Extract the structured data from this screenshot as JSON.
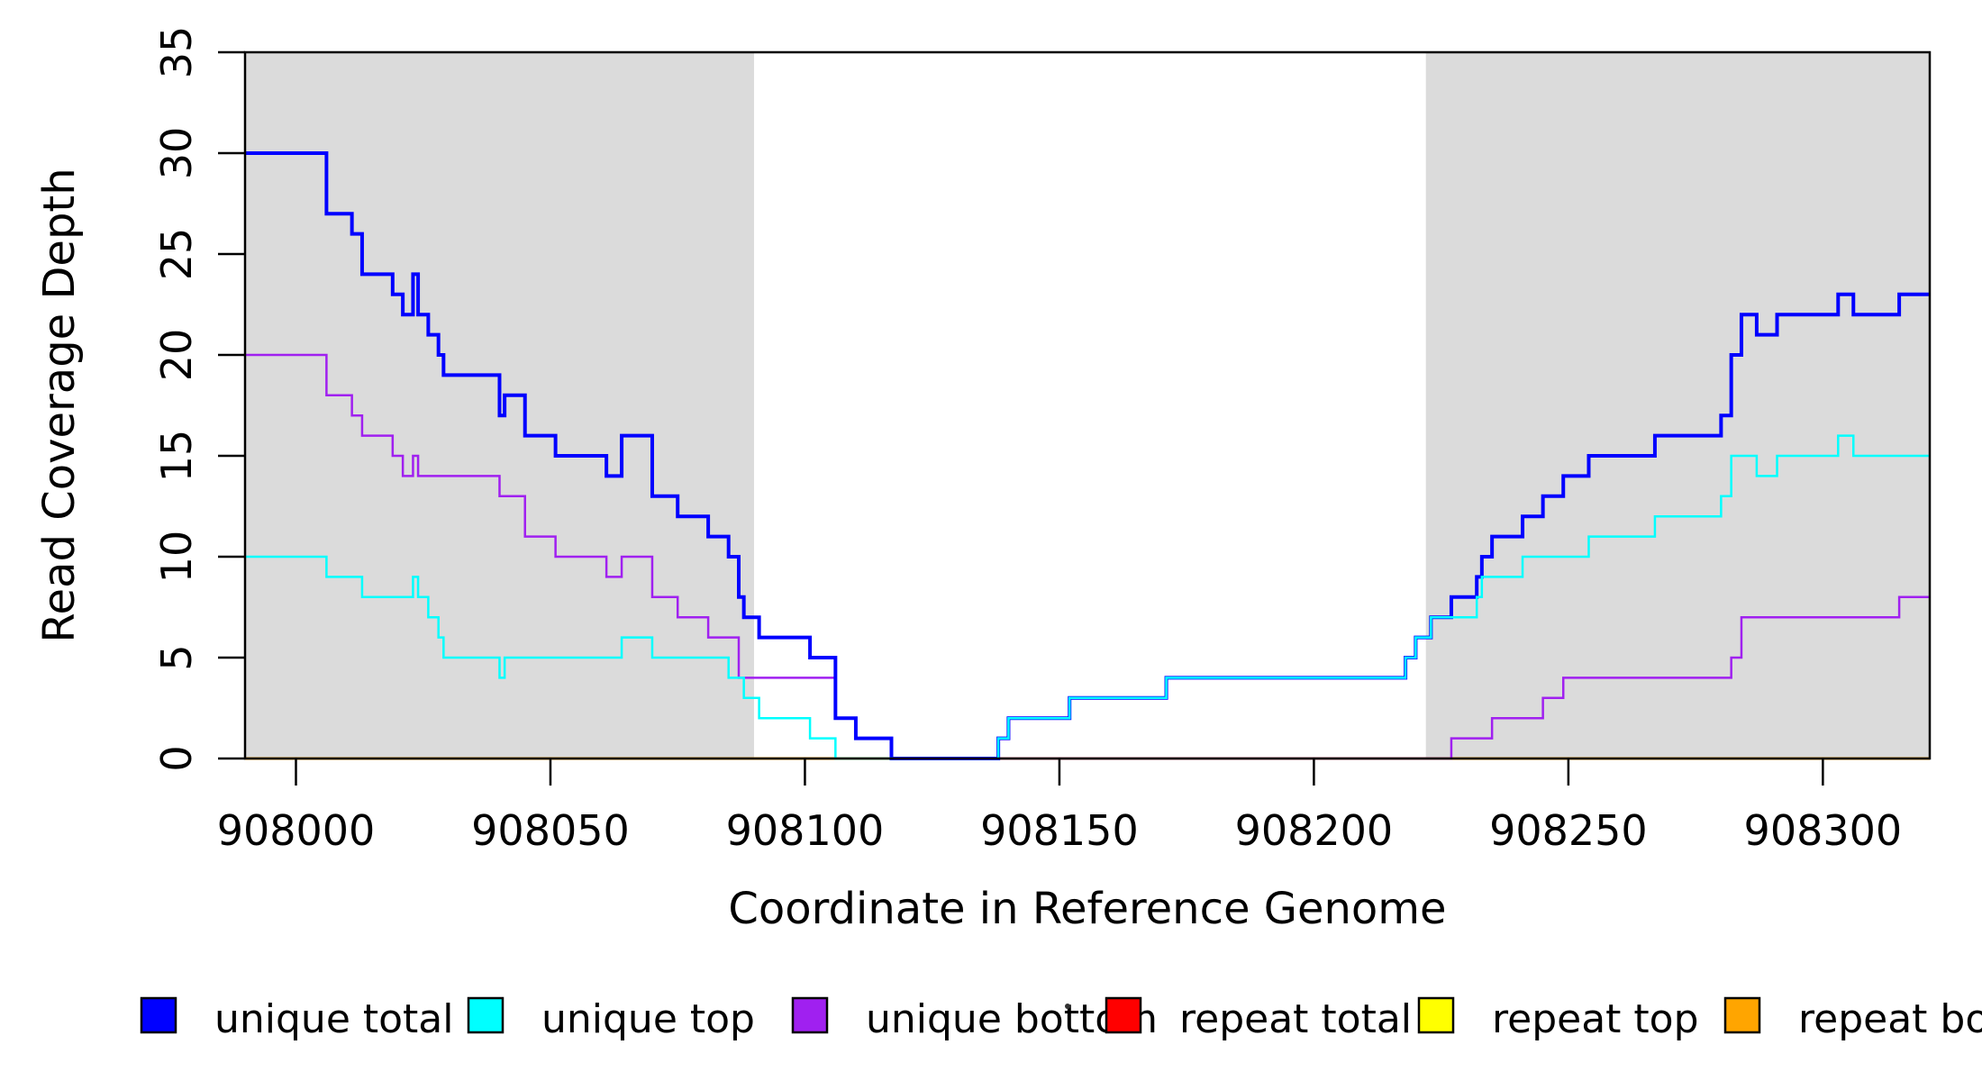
{
  "chart_data": {
    "type": "line",
    "subtype": "step-after-coverage-plot",
    "title": "",
    "xlabel": "Coordinate in Reference Genome",
    "ylabel": "Read Coverage Depth",
    "xlim": [
      907990,
      908321
    ],
    "ylim": [
      0,
      35
    ],
    "xticks": [
      908000,
      908050,
      908100,
      908150,
      908200,
      908250,
      908300
    ],
    "yticks": [
      0,
      5,
      10,
      15,
      20,
      25,
      30,
      35
    ],
    "grid": false,
    "shade_color": "#DBDBDB",
    "shaded_regions": [
      {
        "x0": 907990,
        "x1": 908090
      },
      {
        "x0": 908222,
        "x1": 908321
      }
    ],
    "series": [
      {
        "name": "repeat total",
        "color": "#FF0000",
        "width": 2.5,
        "points": [
          [
            907990,
            0
          ],
          [
            908321,
            0
          ]
        ]
      },
      {
        "name": "repeat top",
        "color": "#FFFF00",
        "width": 2.5,
        "points": [
          [
            907990,
            0
          ],
          [
            908321,
            0
          ]
        ]
      },
      {
        "name": "repeat bottom",
        "color": "#FFA500",
        "width": 3,
        "points": [
          [
            907990,
            0
          ],
          [
            908321,
            0
          ]
        ]
      },
      {
        "name": "unique bottom",
        "color": "#A020F0",
        "width": 2.5,
        "points": [
          [
            907990,
            20
          ],
          [
            908006,
            18
          ],
          [
            908011,
            17
          ],
          [
            908013,
            16
          ],
          [
            908019,
            15
          ],
          [
            908021,
            14
          ],
          [
            908023,
            15
          ],
          [
            908024,
            14
          ],
          [
            908040,
            13
          ],
          [
            908045,
            11
          ],
          [
            908051,
            10
          ],
          [
            908061,
            9
          ],
          [
            908064,
            10
          ],
          [
            908070,
            8
          ],
          [
            908075,
            7
          ],
          [
            908081,
            6
          ],
          [
            908087,
            4
          ],
          [
            908106,
            2
          ],
          [
            908110,
            1
          ],
          [
            908117,
            0
          ],
          [
            908227,
            1
          ],
          [
            908235,
            2
          ],
          [
            908245,
            3
          ],
          [
            908249,
            4
          ],
          [
            908282,
            5
          ],
          [
            908284,
            7
          ],
          [
            908315,
            8
          ],
          [
            908321,
            8
          ]
        ]
      },
      {
        "name": "unique total",
        "color": "#0000FF",
        "width": 4,
        "points": [
          [
            907990,
            30
          ],
          [
            908006,
            27
          ],
          [
            908011,
            26
          ],
          [
            908013,
            24
          ],
          [
            908019,
            23
          ],
          [
            908021,
            22
          ],
          [
            908023,
            24
          ],
          [
            908024,
            22
          ],
          [
            908026,
            21
          ],
          [
            908028,
            20
          ],
          [
            908029,
            19
          ],
          [
            908040,
            17
          ],
          [
            908041,
            18
          ],
          [
            908045,
            16
          ],
          [
            908051,
            15
          ],
          [
            908061,
            14
          ],
          [
            908064,
            16
          ],
          [
            908070,
            13
          ],
          [
            908075,
            12
          ],
          [
            908081,
            11
          ],
          [
            908085,
            10
          ],
          [
            908087,
            8
          ],
          [
            908088,
            7
          ],
          [
            908091,
            6
          ],
          [
            908101,
            5
          ],
          [
            908106,
            2
          ],
          [
            908110,
            1
          ],
          [
            908117,
            0
          ],
          [
            908138,
            1
          ],
          [
            908140,
            2
          ],
          [
            908152,
            3
          ],
          [
            908171,
            4
          ],
          [
            908218,
            5
          ],
          [
            908220,
            6
          ],
          [
            908223,
            7
          ],
          [
            908227,
            8
          ],
          [
            908232,
            9
          ],
          [
            908233,
            10
          ],
          [
            908235,
            11
          ],
          [
            908241,
            12
          ],
          [
            908245,
            13
          ],
          [
            908249,
            14
          ],
          [
            908254,
            15
          ],
          [
            908267,
            16
          ],
          [
            908280,
            17
          ],
          [
            908282,
            20
          ],
          [
            908284,
            22
          ],
          [
            908287,
            21
          ],
          [
            908291,
            22
          ],
          [
            908303,
            23
          ],
          [
            908306,
            22
          ],
          [
            908315,
            23
          ],
          [
            908321,
            23
          ]
        ]
      },
      {
        "name": "unique top",
        "color": "#00FFFF",
        "width": 2.5,
        "points": [
          [
            907990,
            10
          ],
          [
            908006,
            9
          ],
          [
            908013,
            8
          ],
          [
            908023,
            9
          ],
          [
            908024,
            8
          ],
          [
            908026,
            7
          ],
          [
            908028,
            6
          ],
          [
            908029,
            5
          ],
          [
            908040,
            4
          ],
          [
            908041,
            5
          ],
          [
            908064,
            6
          ],
          [
            908070,
            5
          ],
          [
            908085,
            4
          ],
          [
            908088,
            3
          ],
          [
            908091,
            2
          ],
          [
            908101,
            1
          ],
          [
            908106,
            0
          ],
          [
            908138,
            1
          ],
          [
            908140,
            2
          ],
          [
            908152,
            3
          ],
          [
            908171,
            4
          ],
          [
            908218,
            5
          ],
          [
            908220,
            6
          ],
          [
            908223,
            7
          ],
          [
            908232,
            8
          ],
          [
            908233,
            9
          ],
          [
            908241,
            10
          ],
          [
            908254,
            11
          ],
          [
            908267,
            12
          ],
          [
            908280,
            13
          ],
          [
            908282,
            15
          ],
          [
            908287,
            14
          ],
          [
            908291,
            15
          ],
          [
            908303,
            16
          ],
          [
            908306,
            15
          ],
          [
            908321,
            15
          ]
        ]
      }
    ],
    "legend_position": "bottom"
  },
  "legend": {
    "items": [
      {
        "label": "unique total",
        "color": "#0000FF"
      },
      {
        "label": "unique top",
        "color": "#00FFFF"
      },
      {
        "label": "unique bottom",
        "color": "#A020F0"
      },
      {
        "label": "repeat total",
        "color": "#FF0000"
      },
      {
        "label": "repeat top",
        "color": "#FFFF00"
      },
      {
        "label": "repeat bottom",
        "color": "#FFA500"
      }
    ]
  },
  "axes": {
    "x_title": "Coordinate in Reference Genome",
    "y_title": "Read Coverage Depth",
    "x_tick_labels": [
      "908000",
      "908050",
      "908100",
      "908150",
      "908200",
      "908250",
      "908300"
    ],
    "y_tick_labels": [
      "0",
      "5",
      "10",
      "15",
      "20",
      "25",
      "30",
      "35"
    ]
  }
}
